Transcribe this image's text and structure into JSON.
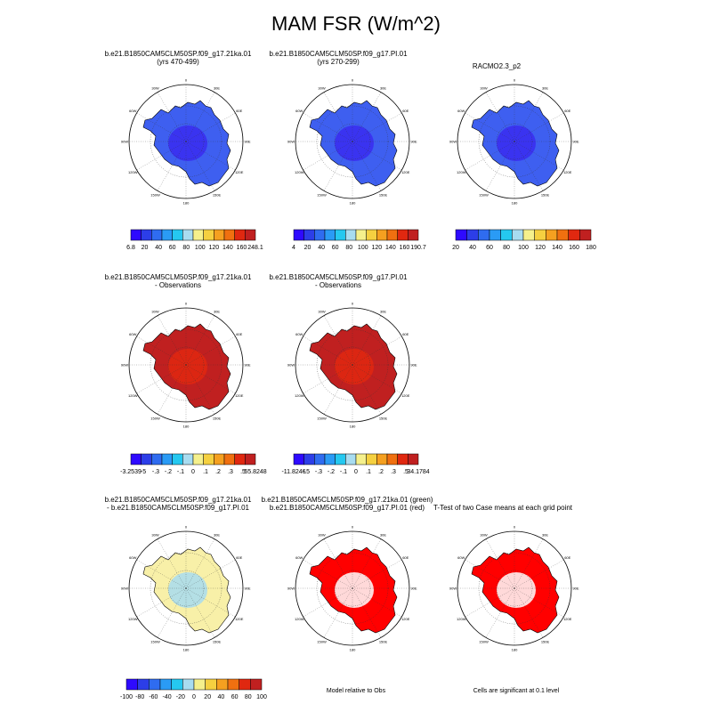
{
  "title": "MAM FSR (W/m^2)",
  "colors": {
    "abs_scale": [
      "#2e0aff",
      "#2c3ee8",
      "#2f6cf0",
      "#2a9bf5",
      "#25c8f0",
      "#a8dcf0",
      "#f5f08c",
      "#f5d040",
      "#f5a020",
      "#f07010",
      "#e02810",
      "#c02020"
    ],
    "diff_scale": [
      "#2e0aff",
      "#2c3ee8",
      "#2f6cf0",
      "#2a9bf5",
      "#25c8f0",
      "#a8dcf0",
      "#f5f08c",
      "#f5d040",
      "#f5a020",
      "#f07010",
      "#e02810",
      "#c02020"
    ],
    "sig_red": "#ff0000",
    "sig_green": "#22dd22",
    "sig_white": "#ffffff"
  },
  "longitude_labels": [
    "30W",
    "0",
    "30E",
    "60W",
    "60E",
    "90W",
    "90E",
    "120W",
    "120E",
    "150W",
    "180",
    "150E"
  ],
  "panels": [
    {
      "caption_line1": "b.e21.B1850CAM5CLM50SP.f09_g17.21ka.01",
      "caption_line2": "(yrs 470-499)",
      "fill": "#3e5ff0",
      "inner": "#3a2cf0",
      "colorbar": [
        "6.8",
        "20",
        "40",
        "60",
        "80",
        "100",
        "120",
        "140",
        "160",
        "248.1"
      ]
    },
    {
      "caption_line1": "b.e21.B1850CAM5CLM50SP.f09_g17.PI.01",
      "caption_line2": "(yrs 270-299)",
      "fill": "#3e5ff0",
      "inner": "#3a2cf0",
      "colorbar": [
        "4",
        "20",
        "40",
        "60",
        "80",
        "100",
        "120",
        "140",
        "160",
        "190.7"
      ]
    },
    {
      "caption_line1": "RACMO2.3_p2",
      "caption_line2": "",
      "fill": "#3e5ff0",
      "inner": "#3a2cf0",
      "colorbar": [
        "20",
        "40",
        "60",
        "80",
        "100",
        "120",
        "140",
        "160",
        "180"
      ]
    },
    {
      "caption_line1": "b.e21.B1850CAM5CLM50SP.f09_g17.21ka.01",
      "caption_line2": "- Observations",
      "fill": "#c02020",
      "inner": "#e02810",
      "colorbar": [
        "-3.2539",
        "-5",
        "-.3",
        "-.2",
        "-.1",
        "0",
        ".1",
        ".2",
        ".3",
        ".5",
        "55.8248"
      ]
    },
    {
      "caption_line1": "b.e21.B1850CAM5CLM50SP.f09_g17.PI.01",
      "caption_line2": "- Observations",
      "fill": "#c02020",
      "inner": "#e02810",
      "colorbar": [
        "-11.8246",
        "-.5",
        "-.3",
        "-.2",
        "-.1",
        "0",
        ".1",
        ".2",
        ".3",
        ".5",
        "34.1784"
      ]
    },
    {
      "caption_line1": "b.e21.B1850CAM5CLM50SP.f09_g17.21ka.01",
      "caption_line2": "- b.e21.B1850CAM5CLM50SP.f09_g17.PI.01",
      "fill": "#f8f0a8",
      "inner": "#a8dcf0",
      "colorbar": [
        "-100",
        "-80",
        "-60",
        "-40",
        "-20",
        "0",
        "20",
        "40",
        "60",
        "80",
        "100"
      ]
    },
    {
      "caption_line1": "b.e21.B1850CAM5CLM50SP.f09_g17.21ka.01 (green)",
      "caption_line2": "b.e21.B1850CAM5CLM50SP.f09_g17.PI.01 (red)",
      "fill": "#ff0000",
      "inner": "#ffffff",
      "footer": "Model relative to Obs"
    },
    {
      "caption_line1": "T-Test of two Case means at each grid point",
      "caption_line2": "",
      "fill": "#ff0000",
      "inner": "#ffffff",
      "footer": "Cells are significant at 0.1 level"
    }
  ]
}
